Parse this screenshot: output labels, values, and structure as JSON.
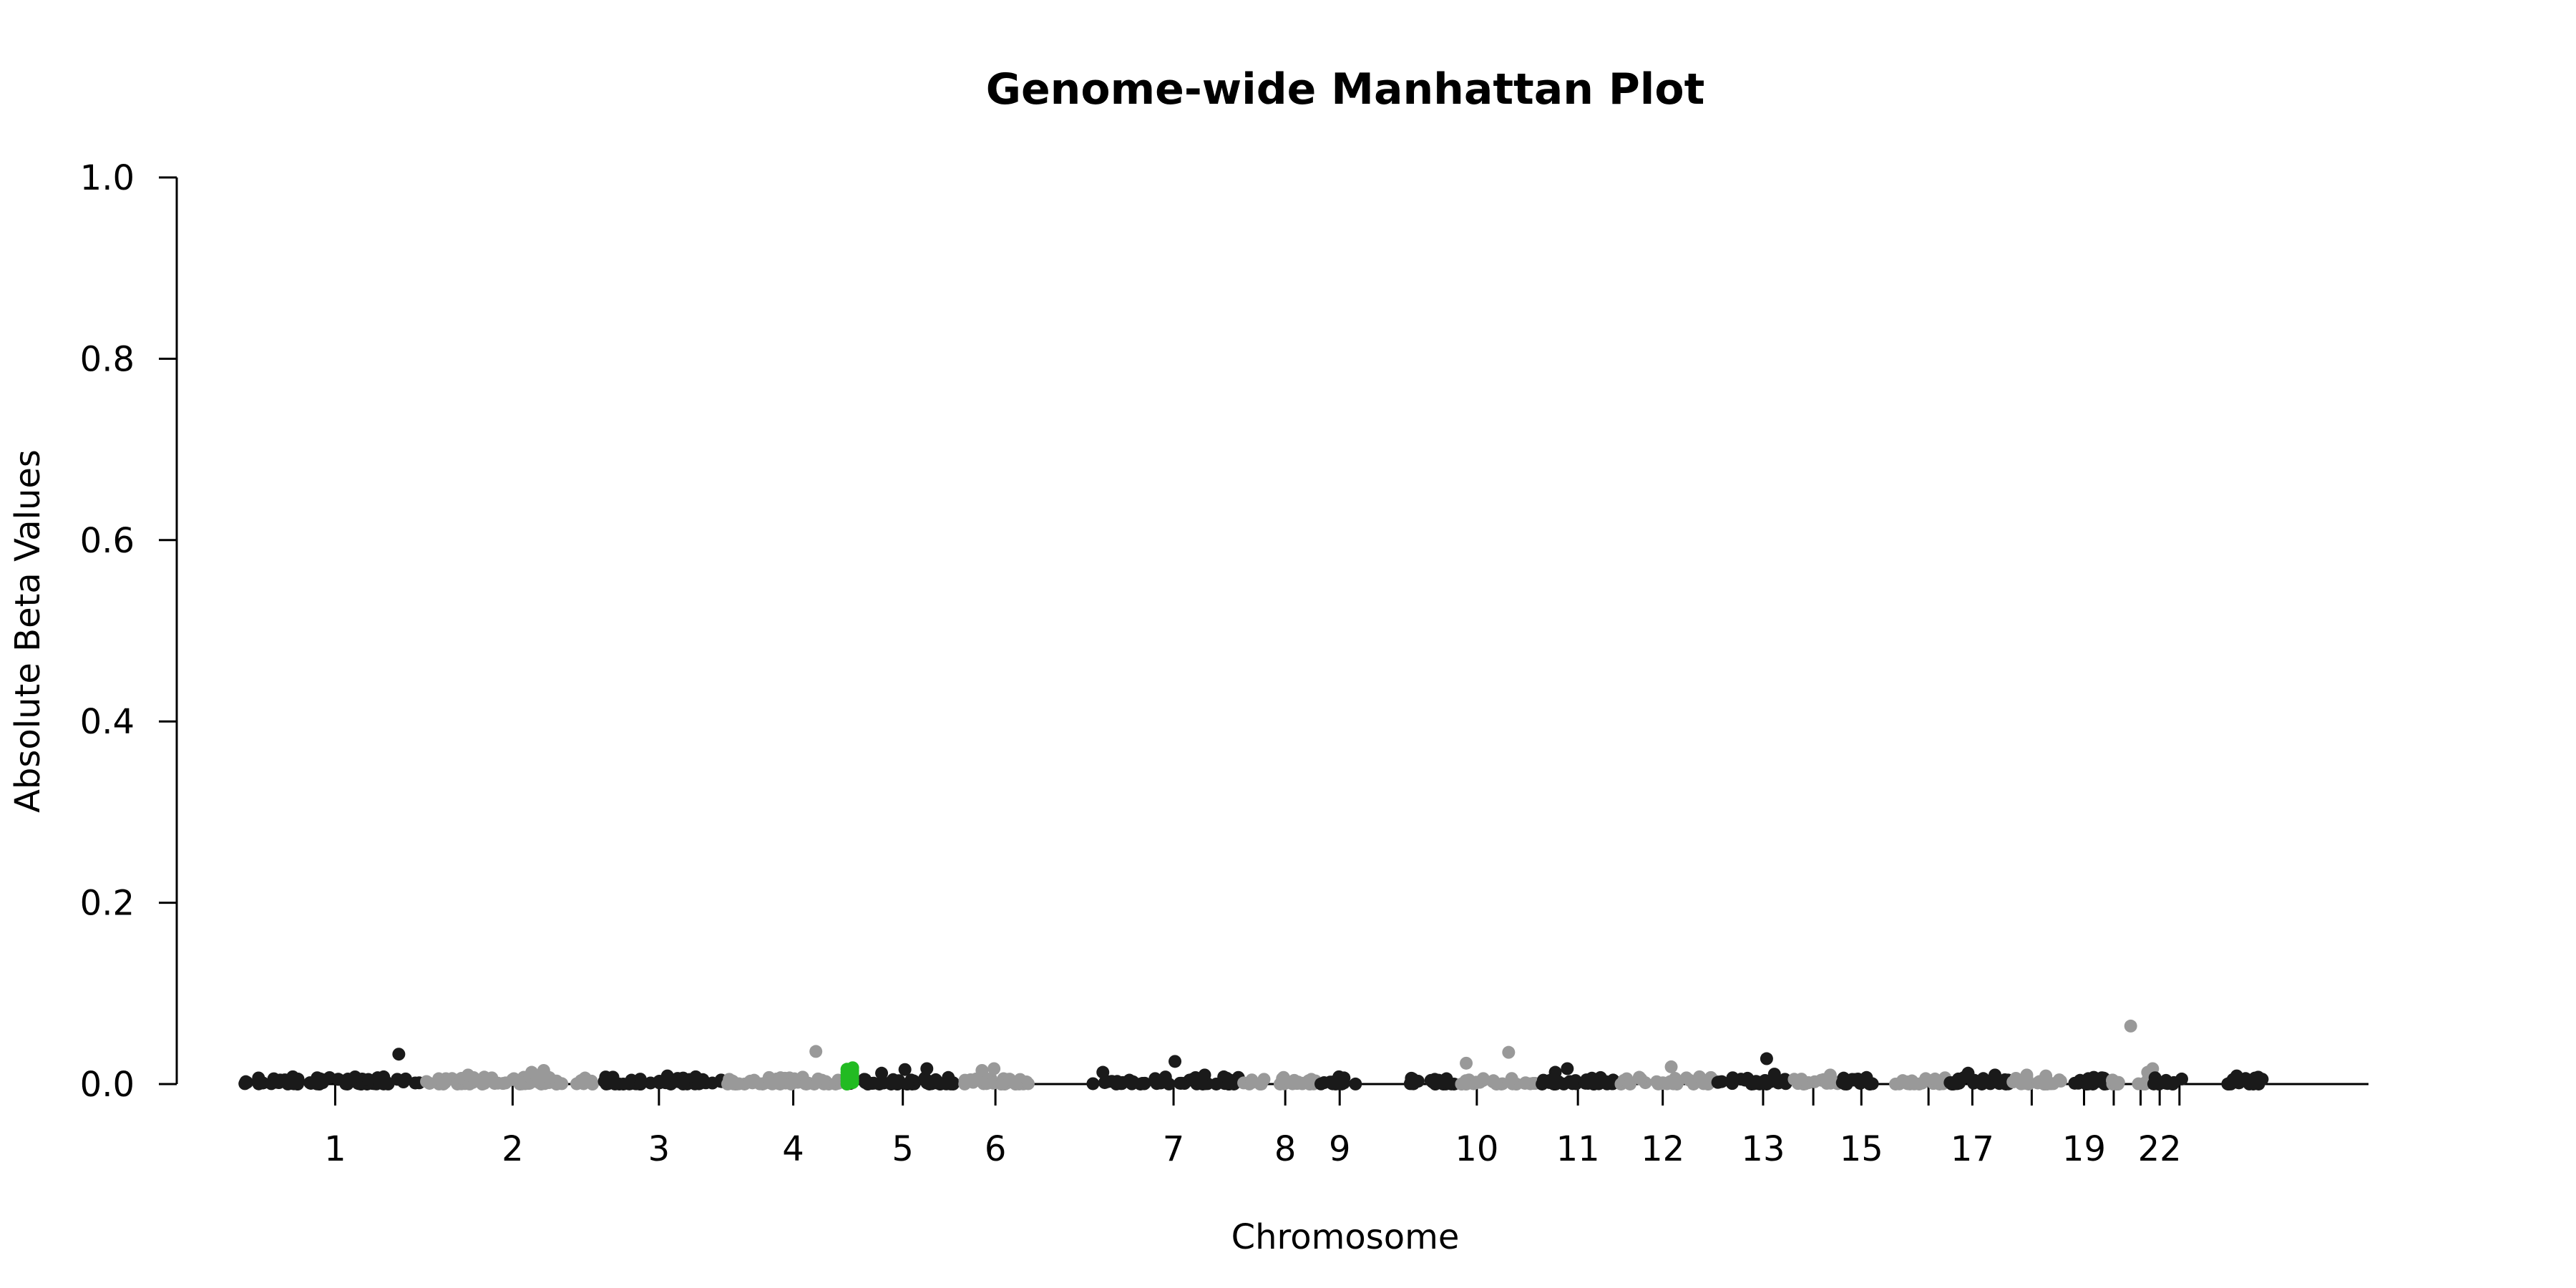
{
  "chart_data": {
    "type": "scatter",
    "title": "Genome-wide Manhattan Plot",
    "xlabel": "Chromosome",
    "ylabel": "Absolute Beta Values",
    "ylim": [
      0,
      1
    ],
    "y_ticks": [
      "0.0",
      "0.2",
      "0.4",
      "0.6",
      "0.8",
      "1.0"
    ],
    "x_range": [
      0,
      3138
    ],
    "grid": false,
    "legend": "none",
    "colors": {
      "odd": "#1a1a1a",
      "even": "#999999",
      "highlight": "#22bb22"
    },
    "chromosome_ticks": [
      {
        "label": "1",
        "x": 130
      },
      {
        "label": "2",
        "x": 381
      },
      {
        "label": "3",
        "x": 588
      },
      {
        "label": "4",
        "x": 778
      },
      {
        "label": "5",
        "x": 933
      },
      {
        "label": "6",
        "x": 1064
      },
      {
        "label": "7",
        "x": 1316
      },
      {
        "label": "8",
        "x": 1474
      },
      {
        "label": "9",
        "x": 1551
      },
      {
        "label": "10",
        "x": 1745
      },
      {
        "label": "11",
        "x": 1888
      },
      {
        "label": "12",
        "x": 2008
      },
      {
        "label": "13",
        "x": 2150
      },
      {
        "label": "",
        "x": 2221
      },
      {
        "label": "15",
        "x": 2289
      },
      {
        "label": "",
        "x": 2384
      },
      {
        "label": "17",
        "x": 2446
      },
      {
        "label": "",
        "x": 2530
      },
      {
        "label": "19",
        "x": 2604
      },
      {
        "label": "",
        "x": 2646
      },
      {
        "label": "",
        "x": 2684
      },
      {
        "label": "22",
        "x": 2711
      },
      {
        "label": "",
        "x": 2739
      }
    ],
    "chromosomes": [
      {
        "x_start": 0,
        "x_end": 250,
        "color": "odd",
        "peaks": [
          {
            "x": 220,
            "y": 0.033
          },
          {
            "x": 70,
            "y": 0.008
          },
          {
            "x": 190,
            "y": 0.007
          }
        ]
      },
      {
        "x_start": 253,
        "x_end": 500,
        "color": "even",
        "peaks": [
          {
            "x": 425,
            "y": 0.015
          },
          {
            "x": 408,
            "y": 0.013
          },
          {
            "x": 318,
            "y": 0.01
          }
        ]
      },
      {
        "x_start": 505,
        "x_end": 680,
        "color": "odd",
        "peaks": [
          {
            "x": 600,
            "y": 0.009
          },
          {
            "x": 640,
            "y": 0.008
          }
        ]
      },
      {
        "x_start": 683,
        "x_end": 855,
        "color": "even",
        "peaks": [
          {
            "x": 810,
            "y": 0.036
          },
          {
            "x": 760,
            "y": 0.007
          }
        ]
      },
      {
        "x_start": 858,
        "x_end": 1010,
        "color": "odd",
        "peaks": [
          {
            "x": 967,
            "y": 0.017
          },
          {
            "x": 936,
            "y": 0.016
          },
          {
            "x": 903,
            "y": 0.012
          }
        ]
      },
      {
        "x_start": 1013,
        "x_end": 1120,
        "color": "even",
        "peaks": [
          {
            "x": 1062,
            "y": 0.017
          },
          {
            "x": 1045,
            "y": 0.015
          }
        ]
      },
      {
        "x_start": 1200,
        "x_end": 1410,
        "color": "odd",
        "peaks": [
          {
            "x": 1318,
            "y": 0.025
          },
          {
            "x": 1216,
            "y": 0.013
          },
          {
            "x": 1360,
            "y": 0.01
          }
        ]
      },
      {
        "x_start": 1415,
        "x_end": 1520,
        "color": "even",
        "peaks": [
          {
            "x": 1470,
            "y": 0.006
          }
        ]
      },
      {
        "x_start": 1523,
        "x_end": 1580,
        "color": "odd",
        "peaks": [
          {
            "x": 1550,
            "y": 0.008
          }
        ]
      },
      {
        "x_start": 1650,
        "x_end": 1720,
        "color": "odd",
        "peaks": [
          {
            "x": 1680,
            "y": 0.004
          }
        ]
      },
      {
        "x_start": 1722,
        "x_end": 1830,
        "color": "even",
        "peaks": [
          {
            "x": 1790,
            "y": 0.035
          },
          {
            "x": 1730,
            "y": 0.023
          }
        ]
      },
      {
        "x_start": 1835,
        "x_end": 1945,
        "color": "odd",
        "peaks": [
          {
            "x": 1873,
            "y": 0.017
          },
          {
            "x": 1856,
            "y": 0.013
          }
        ]
      },
      {
        "x_start": 1947,
        "x_end": 2080,
        "color": "even",
        "peaks": [
          {
            "x": 2020,
            "y": 0.019
          },
          {
            "x": 2060,
            "y": 0.008
          }
        ]
      },
      {
        "x_start": 2085,
        "x_end": 2190,
        "color": "odd",
        "peaks": [
          {
            "x": 2155,
            "y": 0.028
          },
          {
            "x": 2166,
            "y": 0.011
          }
        ]
      },
      {
        "x_start": 2192,
        "x_end": 2260,
        "color": "even",
        "peaks": [
          {
            "x": 2245,
            "y": 0.01
          }
        ]
      },
      {
        "x_start": 2262,
        "x_end": 2320,
        "color": "odd",
        "peaks": [
          {
            "x": 2280,
            "y": 0.005
          }
        ]
      },
      {
        "x_start": 2322,
        "x_end": 2410,
        "color": "even",
        "peaks": [
          {
            "x": 2380,
            "y": 0.006
          }
        ]
      },
      {
        "x_start": 2412,
        "x_end": 2500,
        "color": "odd",
        "peaks": [
          {
            "x": 2440,
            "y": 0.012
          },
          {
            "x": 2478,
            "y": 0.01
          }
        ]
      },
      {
        "x_start": 2502,
        "x_end": 2575,
        "color": "even",
        "peaks": [
          {
            "x": 2523,
            "y": 0.01
          },
          {
            "x": 2550,
            "y": 0.009
          }
        ]
      },
      {
        "x_start": 2580,
        "x_end": 2640,
        "color": "odd",
        "peaks": [
          {
            "x": 2610,
            "y": 0.006
          }
        ]
      },
      {
        "x_start": 2642,
        "x_end": 2700,
        "color": "even",
        "peaks": [
          {
            "x": 2670,
            "y": 0.064
          },
          {
            "x": 2701,
            "y": 0.017
          },
          {
            "x": 2694,
            "y": 0.013
          }
        ]
      },
      {
        "x_start": 2702,
        "x_end": 2745,
        "color": "odd",
        "peaks": [
          {
            "x": 2720,
            "y": 0.004
          }
        ]
      },
      {
        "x_start": 2800,
        "x_end": 2860,
        "color": "odd",
        "peaks": [
          {
            "x": 2820,
            "y": 0.009
          },
          {
            "x": 2850,
            "y": 0.005
          }
        ]
      }
    ],
    "highlight": {
      "x": 858,
      "y_max": 0.018,
      "n": 12
    }
  }
}
